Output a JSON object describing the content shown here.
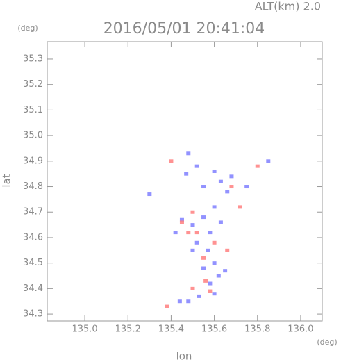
{
  "chart_data": {
    "type": "scatter",
    "title": "2016/05/01 20:41:04",
    "subtitle": "ALT(km) 2.0",
    "y_unit": "(deg)",
    "x_unit": "(deg)",
    "x_label": "lon",
    "y_label": "lat",
    "xlim": [
      134.826,
      136.1
    ],
    "ylim": [
      34.273,
      35.368
    ],
    "xticks": [
      {
        "value": 135.0,
        "label": "135.0"
      },
      135.2,
      135.4,
      135.6,
      135.8,
      {
        "value": 136.0,
        "label": "136.0"
      }
    ],
    "yticks": [
      34.3,
      34.4,
      34.5,
      34.6,
      34.7,
      34.8,
      34.9,
      {
        "value": 35.0,
        "label": "35.0"
      },
      35.1,
      35.2,
      35.3
    ],
    "series": [
      {
        "color": "#7f7fff",
        "x": [
          135.48,
          135.52,
          135.47,
          135.55,
          135.6,
          135.63,
          135.66,
          135.68,
          135.75,
          135.85,
          135.3,
          135.45,
          135.5,
          135.55,
          135.58,
          135.52,
          135.57,
          135.6,
          135.55,
          135.62,
          135.58,
          135.6,
          135.65,
          135.5,
          135.42,
          135.48,
          135.44,
          135.53,
          135.63,
          135.6
        ],
        "y": [
          34.93,
          34.88,
          34.85,
          34.8,
          34.86,
          34.82,
          34.78,
          34.84,
          34.8,
          34.9,
          34.77,
          34.67,
          34.65,
          34.68,
          34.62,
          34.58,
          34.55,
          34.5,
          34.48,
          34.45,
          34.42,
          34.38,
          34.47,
          34.55,
          34.62,
          34.35,
          34.35,
          34.37,
          34.66,
          34.72
        ]
      },
      {
        "color": "#ff7f7f",
        "x": [
          135.4,
          135.5,
          135.52,
          135.45,
          135.6,
          135.56,
          135.5,
          135.58,
          135.38,
          135.72,
          135.68,
          135.8,
          135.55,
          135.48,
          135.66
        ],
        "y": [
          34.9,
          34.7,
          34.62,
          34.66,
          34.58,
          34.43,
          34.4,
          34.39,
          34.33,
          34.72,
          34.8,
          34.88,
          34.52,
          34.62,
          34.55
        ]
      }
    ]
  }
}
